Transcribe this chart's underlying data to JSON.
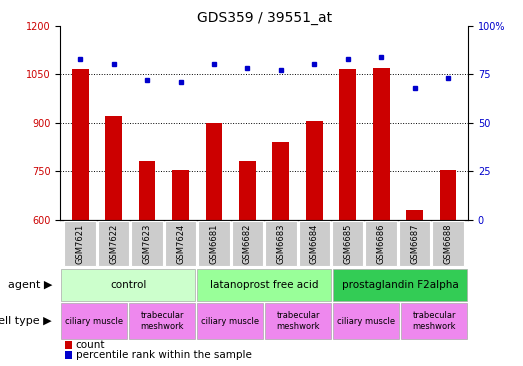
{
  "title": "GDS359 / 39551_at",
  "samples": [
    "GSM7621",
    "GSM7622",
    "GSM7623",
    "GSM7624",
    "GSM6681",
    "GSM6682",
    "GSM6683",
    "GSM6684",
    "GSM6685",
    "GSM6686",
    "GSM6687",
    "GSM6688"
  ],
  "counts": [
    1065,
    920,
    780,
    752,
    900,
    780,
    840,
    905,
    1065,
    1070,
    630,
    752
  ],
  "percentiles": [
    83,
    80,
    72,
    71,
    80,
    78,
    77,
    80,
    83,
    84,
    68,
    73
  ],
  "ylim_left": [
    600,
    1200
  ],
  "ylim_right": [
    0,
    100
  ],
  "yticks_left": [
    600,
    750,
    900,
    1050,
    1200
  ],
  "yticks_right": [
    0,
    25,
    50,
    75,
    100
  ],
  "bar_color": "#cc0000",
  "dot_color": "#0000cc",
  "agents": [
    {
      "label": "control",
      "start": 0,
      "end": 4,
      "color": "#ccffcc"
    },
    {
      "label": "latanoprost free acid",
      "start": 4,
      "end": 8,
      "color": "#99ff99"
    },
    {
      "label": "prostaglandin F2alpha",
      "start": 8,
      "end": 12,
      "color": "#33cc55"
    }
  ],
  "cell_types": [
    {
      "label": "ciliary muscle",
      "start": 0,
      "end": 2
    },
    {
      "label": "trabecular\nmeshwork",
      "start": 2,
      "end": 4
    },
    {
      "label": "ciliary muscle",
      "start": 4,
      "end": 6
    },
    {
      "label": "trabecular\nmeshwork",
      "start": 6,
      "end": 8
    },
    {
      "label": "ciliary muscle",
      "start": 8,
      "end": 10
    },
    {
      "label": "trabecular\nmeshwork",
      "start": 10,
      "end": 12
    }
  ],
  "cell_color": "#ee88ee",
  "sample_box_color": "#cccccc",
  "legend_count_label": "count",
  "legend_percentile_label": "percentile rank within the sample",
  "agent_label": "agent",
  "cell_type_label": "cell type",
  "title_fontsize": 10,
  "tick_fontsize": 7,
  "sample_fontsize": 6,
  "annotation_fontsize": 7.5,
  "bar_width": 0.5
}
